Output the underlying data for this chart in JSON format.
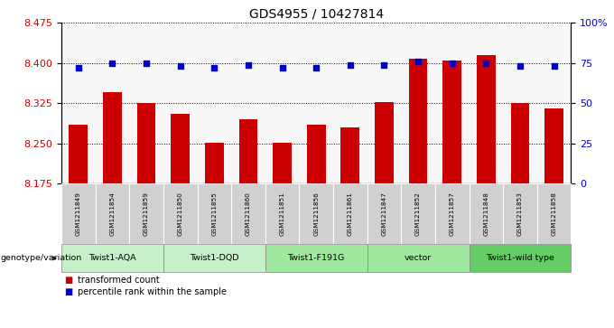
{
  "title": "GDS4955 / 10427814",
  "samples": [
    "GSM1211849",
    "GSM1211854",
    "GSM1211859",
    "GSM1211850",
    "GSM1211855",
    "GSM1211860",
    "GSM1211851",
    "GSM1211856",
    "GSM1211861",
    "GSM1211847",
    "GSM1211852",
    "GSM1211857",
    "GSM1211848",
    "GSM1211853",
    "GSM1211858"
  ],
  "bar_values": [
    8.285,
    8.345,
    8.325,
    8.305,
    8.252,
    8.295,
    8.252,
    8.285,
    8.28,
    8.328,
    8.408,
    8.405,
    8.415,
    8.325,
    8.315
  ],
  "dot_values": [
    72,
    75,
    75,
    73,
    72,
    74,
    72,
    72,
    74,
    74,
    76,
    75,
    75,
    73,
    73
  ],
  "ylim_left": [
    8.175,
    8.475
  ],
  "ylim_right": [
    0,
    100
  ],
  "yticks_left": [
    8.175,
    8.25,
    8.325,
    8.4,
    8.475
  ],
  "yticks_right": [
    0,
    25,
    50,
    75,
    100
  ],
  "ytick_labels_right": [
    "0",
    "25",
    "50",
    "75",
    "100%"
  ],
  "bar_color": "#cc0000",
  "dot_color": "#0000cc",
  "bar_bottom": 8.175,
  "bg_color": "#ffffff",
  "xlabel_color": "#cc0000",
  "ylabel_right_color": "#0000cc",
  "genotype_label": "genotype/variation",
  "groups": [
    {
      "label": "Twist1-AQA",
      "indices": [
        0,
        1,
        2
      ],
      "color": "#c8f0c8"
    },
    {
      "label": "Twist1-DQD",
      "indices": [
        3,
        4,
        5
      ],
      "color": "#c8f0c8"
    },
    {
      "label": "Twist1-F191G",
      "indices": [
        6,
        7,
        8
      ],
      "color": "#a0e8a0"
    },
    {
      "label": "vector",
      "indices": [
        9,
        10,
        11
      ],
      "color": "#a0e8a0"
    },
    {
      "label": "Twist1-wild type",
      "indices": [
        12,
        13,
        14
      ],
      "color": "#66cc66"
    }
  ]
}
